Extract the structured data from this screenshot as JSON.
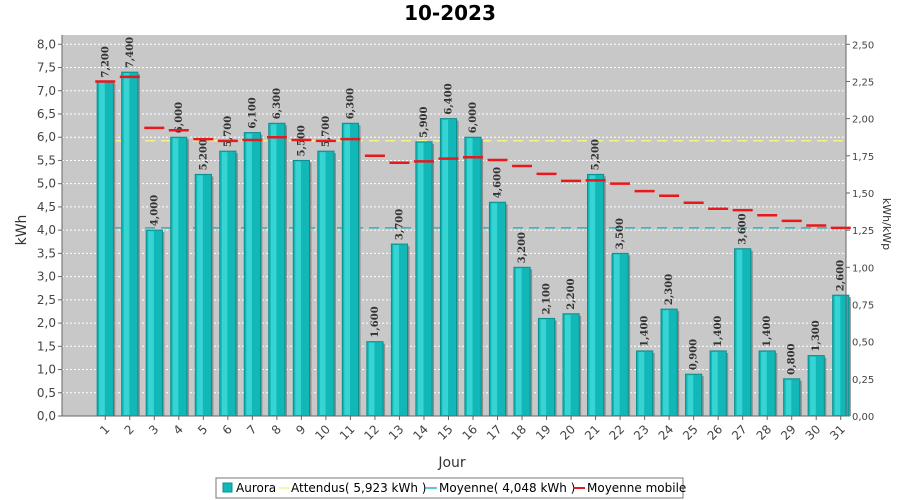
{
  "chart_data": {
    "type": "bar",
    "title": "10-2023",
    "xlabel": "Jour",
    "ylabel": "kWh",
    "ylabel_right": "kWh/kWp",
    "ylim": [
      0,
      8.2
    ],
    "ylim_right": [
      0,
      2.5625
    ],
    "yticks": [
      "0,0",
      "0,5",
      "1,0",
      "1,5",
      "2,0",
      "2,5",
      "3,0",
      "3,5",
      "4,0",
      "4,5",
      "5,0",
      "5,5",
      "6,0",
      "6,5",
      "7,0",
      "7,5",
      "8,0"
    ],
    "yticks_right": [
      "0,00",
      "0,25",
      "0,50",
      "0,75",
      "1,00",
      "1,25",
      "1,50",
      "1,75",
      "2,00",
      "2,25",
      "2,50"
    ],
    "categories": [
      "1",
      "2",
      "3",
      "4",
      "5",
      "6",
      "7",
      "8",
      "9",
      "10",
      "11",
      "12",
      "13",
      "14",
      "15",
      "16",
      "17",
      "18",
      "19",
      "20",
      "21",
      "22",
      "23",
      "24",
      "25",
      "26",
      "27",
      "28",
      "29",
      "30",
      "31"
    ],
    "series": [
      {
        "name": "Aurora",
        "values": [
          7.2,
          7.4,
          4.0,
          6.0,
          5.2,
          5.7,
          6.1,
          6.3,
          5.5,
          5.7,
          6.3,
          1.6,
          3.7,
          5.9,
          6.4,
          6.0,
          4.6,
          3.2,
          2.1,
          2.2,
          5.2,
          3.5,
          1.4,
          2.3,
          0.9,
          1.4,
          3.6,
          1.4,
          0.8,
          1.3,
          2.6
        ],
        "labels": [
          "7,200",
          "7,400",
          "4,000",
          "6,000",
          "5,200",
          "5,700",
          "6,100",
          "6,300",
          "5,500",
          "5,700",
          "6,300",
          "1,600",
          "3,700",
          "5,900",
          "6,400",
          "6,000",
          "4,600",
          "3,200",
          "2,100",
          "2,200",
          "5,200",
          "3,500",
          "1,400",
          "2,300",
          "0,900",
          "1,400",
          "3,600",
          "1,400",
          "0,800",
          "1,300",
          "2,600"
        ]
      },
      {
        "name": "Moyenne mobile",
        "values": [
          7.2,
          7.3,
          6.2,
          6.15,
          5.96,
          5.92,
          5.94,
          6.0,
          5.94,
          5.92,
          5.96,
          5.6,
          5.45,
          5.48,
          5.54,
          5.57,
          5.51,
          5.38,
          5.21,
          5.06,
          5.07,
          5.0,
          4.84,
          4.74,
          4.59,
          4.46,
          4.43,
          4.32,
          4.2,
          4.1,
          4.05
        ]
      }
    ],
    "reference_lines": [
      {
        "name": "Attendus( 5,923 kWh )",
        "value": 5.923,
        "color": "#f2f28a"
      },
      {
        "name": "Moyenne( 4,048 kWh )",
        "value": 4.048,
        "color": "#2ab5bd"
      }
    ],
    "colors": {
      "bar": "#12b8b8",
      "bar_highlight": "#4fe6e3",
      "bar_shadow": "#0a8f8f",
      "moving_avg": "#e8191c",
      "plot_bg": "#c8c8c8",
      "grid": "#ffffff"
    },
    "grid": true,
    "legend": "bottom"
  }
}
